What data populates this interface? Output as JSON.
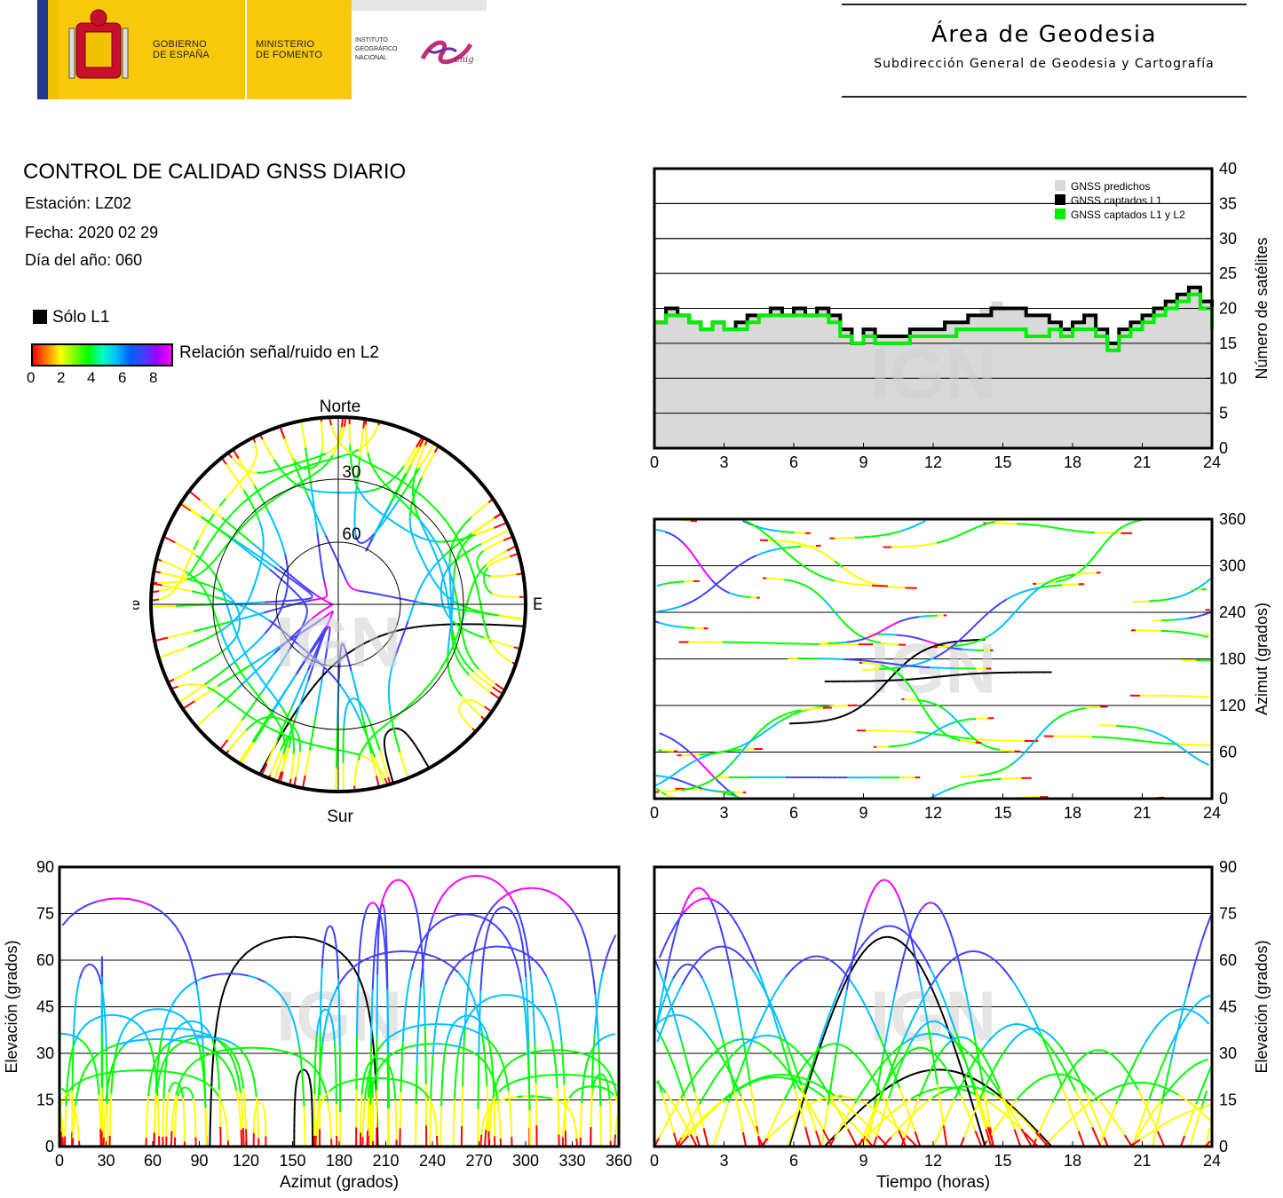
{
  "header": {
    "gov_line1": "GOBIERNO",
    "gov_line2": "DE ESPAÑA",
    "ministry_line1": "MINISTERIO",
    "ministry_line2": "DE FOMENTO",
    "ign_line1": "INSTITUTO",
    "ign_line2": "GEOGRÁFICO",
    "ign_line3": "NACIONAL",
    "cnig": "cnig",
    "area_title": "Área de Geodesia",
    "area_subtitle": "Subdirección General de Geodesia y Cartografía"
  },
  "report": {
    "title": "CONTROL DE CALIDAD GNSS DIARIO",
    "station": "Estación: LZ02",
    "date": "Fecha: 2020 02 29",
    "doy": "Día del año: 060"
  },
  "legend": {
    "l1_only": "Sólo L1",
    "snr_label": "Relación señal/ruido en L2",
    "snr_ticks": [
      "0",
      "2",
      "4",
      "6",
      "8"
    ],
    "snr_colors": [
      "#ff0000",
      "#ffff00",
      "#00ff00",
      "#00c0ff",
      "#4040ff",
      "#ff00ff"
    ],
    "l1_color": "#000000"
  },
  "watermark": "IGN",
  "chart_data": [
    {
      "type": "polar-skyplot",
      "labels": {
        "north": "Norte",
        "south": "Sur",
        "east": "Este",
        "west": "Oeste"
      },
      "ring_labels": [
        "30",
        "60"
      ],
      "rings_elevation_deg": [
        0,
        30,
        60
      ]
    },
    {
      "type": "line",
      "id": "satellites",
      "xlim": [
        0,
        24
      ],
      "ylim": [
        0,
        40
      ],
      "xticks": [
        "0",
        "3",
        "6",
        "9",
        "12",
        "15",
        "18",
        "21",
        "24"
      ],
      "yticks": [
        "0",
        "5",
        "10",
        "15",
        "20",
        "25",
        "30",
        "35",
        "40"
      ],
      "ylabel": "Número de satélites",
      "legend": [
        "GNSS predichos",
        "GNSS captados L1",
        "GNSS captados L1 y L2"
      ],
      "colors": [
        "#d9d9d9",
        "#000000",
        "#00ee00"
      ],
      "x": [
        0,
        0.5,
        1,
        1.5,
        2,
        2.5,
        3,
        3.5,
        4,
        4.5,
        5,
        5.5,
        6,
        6.5,
        7,
        7.5,
        8,
        8.5,
        9,
        9.5,
        10,
        10.5,
        11,
        11.5,
        12,
        12.5,
        13,
        13.5,
        14,
        14.5,
        15,
        15.5,
        16,
        16.5,
        17,
        17.5,
        18,
        18.5,
        19,
        19.5,
        20,
        20.5,
        21,
        21.5,
        22,
        22.5,
        23,
        23.5,
        24
      ],
      "series": [
        {
          "name": "GNSS predichos",
          "values": [
            18,
            20,
            19,
            18,
            17,
            18,
            17,
            18,
            19,
            19,
            20,
            19,
            20,
            19,
            20,
            19,
            17,
            15,
            17,
            16,
            16,
            16,
            17,
            17,
            17,
            18,
            18,
            19,
            20,
            21,
            20,
            20,
            19,
            19,
            18,
            17,
            18,
            19,
            17,
            15,
            17,
            18,
            19,
            20,
            21,
            22,
            23,
            21,
            18
          ]
        },
        {
          "name": "GNSS captados L1",
          "values": [
            18,
            20,
            19,
            18,
            17,
            18,
            17,
            18,
            19,
            19,
            20,
            19,
            20,
            19,
            20,
            19,
            17,
            15,
            17,
            16,
            16,
            16,
            17,
            17,
            17,
            18,
            18,
            19,
            19,
            20,
            20,
            20,
            19,
            19,
            18,
            17,
            18,
            19,
            17,
            15,
            17,
            18,
            19,
            20,
            21,
            22,
            23,
            21,
            18
          ]
        },
        {
          "name": "GNSS captados L1 y L2",
          "values": [
            18,
            19,
            19,
            18,
            17,
            18,
            17,
            17,
            18,
            19,
            19,
            19,
            19,
            19,
            19,
            18,
            16,
            15,
            16,
            15,
            15,
            15,
            16,
            16,
            16,
            16,
            17,
            17,
            17,
            17,
            17,
            17,
            16,
            16,
            17,
            16,
            17,
            17,
            16,
            14,
            16,
            17,
            18,
            19,
            20,
            21,
            22,
            20,
            17
          ]
        }
      ]
    },
    {
      "type": "scatter",
      "id": "azimuth-time",
      "xlim": [
        0,
        24
      ],
      "ylim": [
        0,
        360
      ],
      "xticks": [
        "0",
        "3",
        "6",
        "9",
        "12",
        "15",
        "18",
        "21",
        "24"
      ],
      "yticks": [
        "0",
        "60",
        "120",
        "180",
        "240",
        "300",
        "360"
      ],
      "ylabel": "Azimut (grados)"
    },
    {
      "type": "scatter",
      "id": "elevation-azimuth",
      "xlim": [
        0,
        360
      ],
      "ylim": [
        0,
        90
      ],
      "xticks": [
        "0",
        "30",
        "60",
        "90",
        "120",
        "150",
        "180",
        "210",
        "240",
        "270",
        "300",
        "330",
        "360"
      ],
      "yticks": [
        "0",
        "15",
        "30",
        "45",
        "60",
        "75",
        "90"
      ],
      "xlabel": "Azimut (grados)",
      "ylabel": "Elevación (grados)"
    },
    {
      "type": "scatter",
      "id": "elevation-time",
      "xlim": [
        0,
        24
      ],
      "ylim": [
        0,
        90
      ],
      "xticks": [
        "0",
        "3",
        "6",
        "9",
        "12",
        "15",
        "18",
        "21",
        "24"
      ],
      "yticks": [
        "0",
        "15",
        "30",
        "45",
        "60",
        "75",
        "90"
      ],
      "xlabel": "Tiempo (horas)",
      "ylabel": "Elevación (grados)"
    }
  ]
}
